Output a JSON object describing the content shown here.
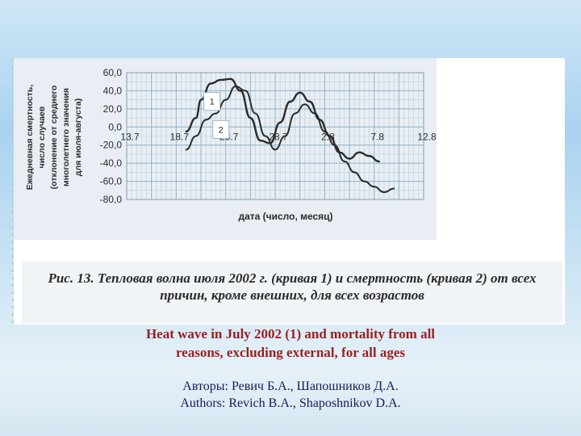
{
  "chart_data": {
    "type": "line",
    "ylabel": "Ежедневная смертность, число случаев (отклонение от среднего многолетнего значения для июля-августа)",
    "xlabel": "дата (число, месяц)",
    "ylim": [
      -80,
      60
    ],
    "yticks": [
      "60,0",
      "40,0",
      "20,0",
      "0,0",
      "-20,0",
      "-40,0",
      "-60,0",
      "-80,0"
    ],
    "yticks_values": [
      60,
      40,
      20,
      0,
      -20,
      -40,
      -60,
      -80
    ],
    "xticks": [
      "13.7",
      "18.7",
      "23.7",
      "28.7",
      "2.8",
      "7.8",
      "12.8"
    ],
    "xlim": [
      0,
      30
    ],
    "grid": true,
    "series": [
      {
        "name": "1",
        "x": [
          6,
          7,
          7.5,
          8.5,
          9.5,
          10.5,
          11.5,
          12.5,
          13.5,
          14.5,
          15.5,
          16.5,
          17.5,
          18.5,
          19.5,
          20.5,
          21.5,
          22.5,
          23.5,
          24.5,
          25.5
        ],
        "values": [
          -5,
          10,
          30,
          48,
          52,
          53,
          40,
          10,
          -15,
          -18,
          5,
          28,
          38,
          28,
          8,
          -10,
          -28,
          -35,
          -28,
          -32,
          -38
        ]
      },
      {
        "name": "2",
        "x": [
          6,
          7,
          8,
          9,
          10,
          11,
          12,
          13,
          14,
          15,
          16,
          17,
          18,
          19,
          20,
          21,
          22,
          23,
          24,
          25,
          26,
          27
        ],
        "values": [
          -25,
          -10,
          8,
          15,
          30,
          45,
          40,
          15,
          -10,
          -25,
          -10,
          15,
          25,
          15,
          -5,
          -20,
          -38,
          -50,
          -60,
          -66,
          -72,
          -68
        ]
      }
    ],
    "legend": "inline labels"
  },
  "caption_ru_line1": "Рис. 13. Тепловая волна июля 2002 г. (кривая 1) и смертность (кривая 2) от всех",
  "caption_ru_line2": "причин, кроме внешних, для всех возрастов",
  "caption_en_line1": "Heat wave in July 2002 (1) and mortality from all",
  "caption_en_line2": "reasons, excluding external, for all ages",
  "authors_ru": "Авторы: Ревич Б.А., Шапошников Д.А.",
  "authors_en": "Authors: Revich B.A., Shaposhnikov D.A."
}
